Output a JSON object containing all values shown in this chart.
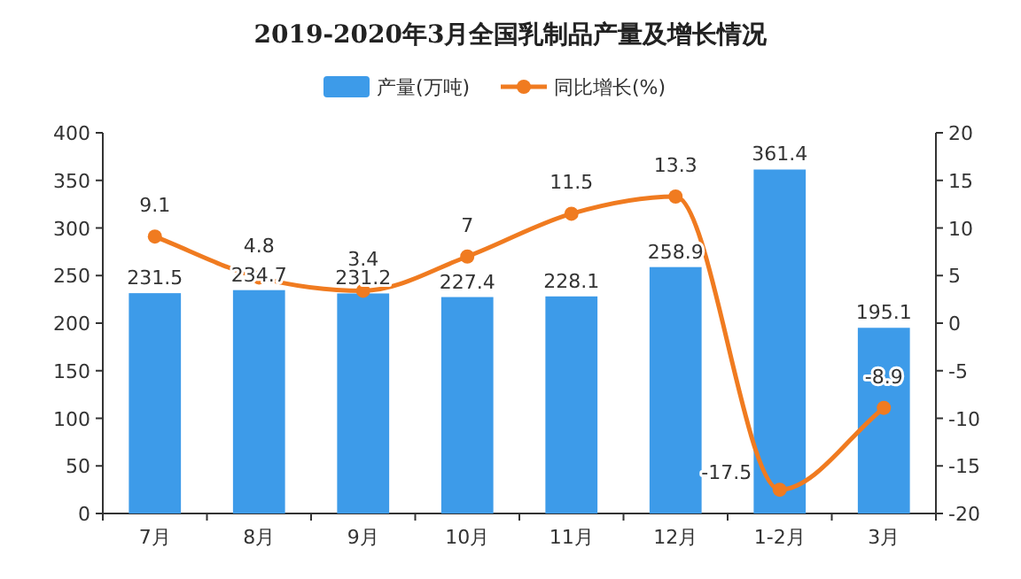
{
  "chart_data": {
    "type": "bar",
    "title": "2019-2020年3月全国乳制品产量及增长情况",
    "categories": [
      "7月",
      "8月",
      "9月",
      "10月",
      "11月",
      "12月",
      "1-2月",
      "3月"
    ],
    "series": [
      {
        "name": "产量(万吨)",
        "color": "#3d9be9",
        "values": [
          231.5,
          234.7,
          231.2,
          227.4,
          228.1,
          258.9,
          361.4,
          195.1
        ]
      },
      {
        "name": "同比增长(%)",
        "type": "line",
        "axis": "y2",
        "color": "#f07b20",
        "values": [
          9.1,
          4.8,
          3.4,
          7,
          11.5,
          13.3,
          -17.5,
          -8.9
        ]
      }
    ],
    "ylim": [
      0,
      400
    ],
    "yticks": [
      0,
      50,
      100,
      150,
      200,
      250,
      300,
      350,
      400
    ],
    "y2lim": [
      -20,
      20
    ],
    "y2ticks": [
      -20,
      -15,
      -10,
      -5,
      0,
      5,
      10,
      15,
      20
    ],
    "legend": "top",
    "data_labels": true,
    "marker": "circle"
  }
}
